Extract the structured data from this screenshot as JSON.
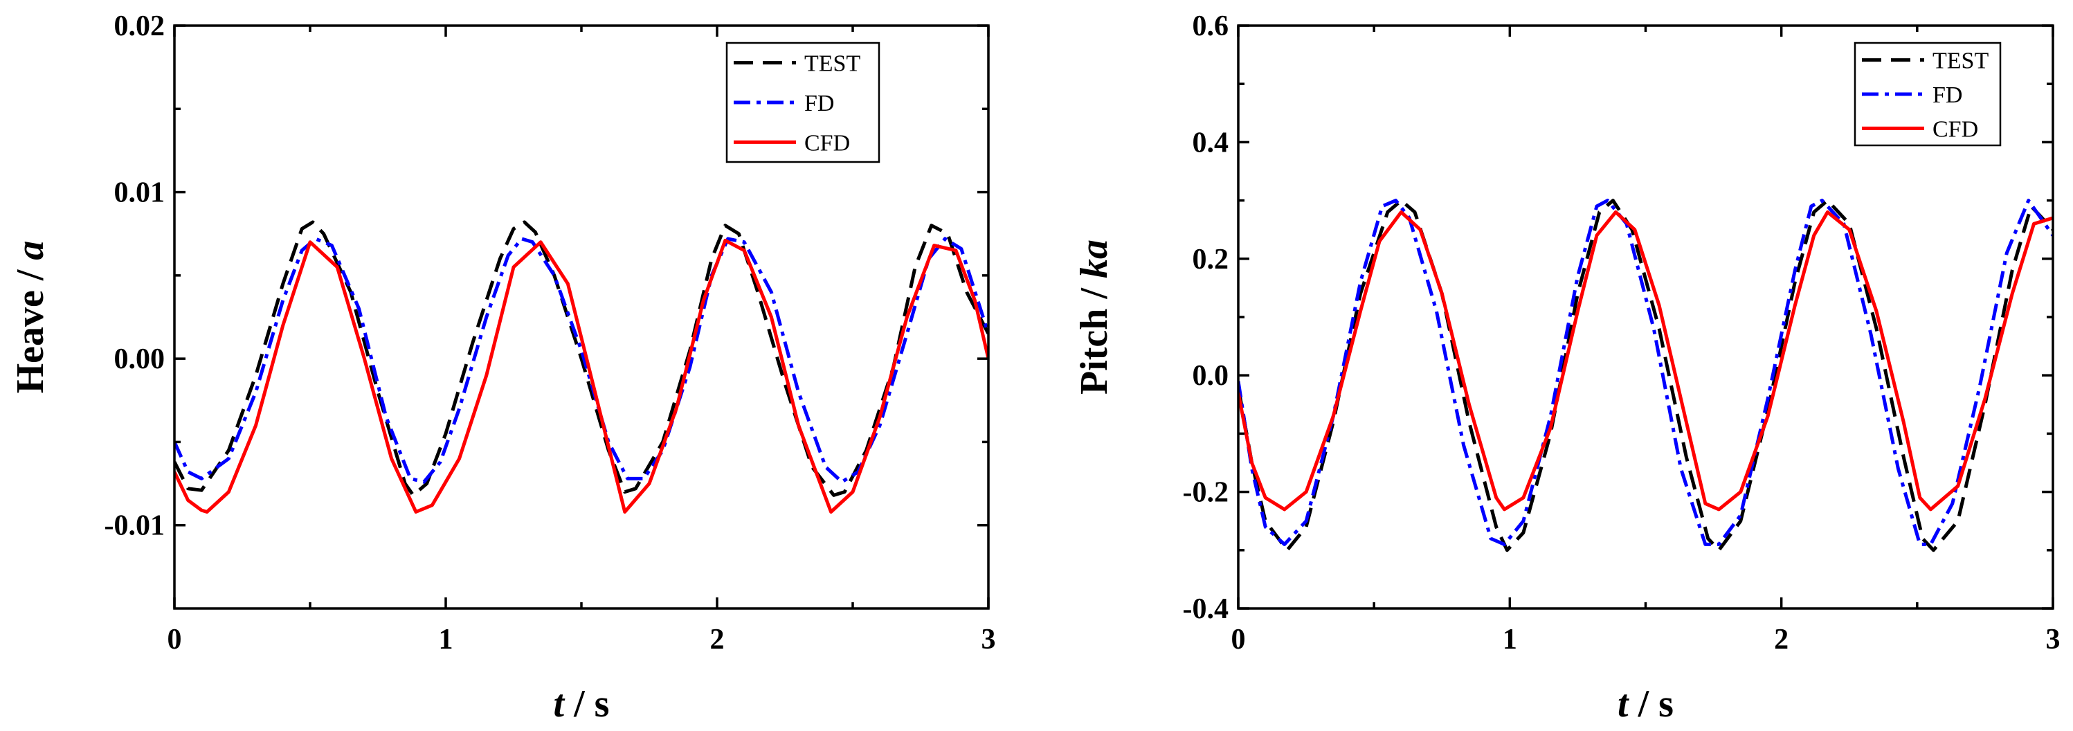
{
  "colors": {
    "TEST": "#000000",
    "FD": "#0000ff",
    "CFD": "#ff0000"
  },
  "chart_data": [
    {
      "type": "line",
      "id": "heave",
      "title": "",
      "xlabel": {
        "var": "t",
        "unit": " / s"
      },
      "ylabel": {
        "prefix": "Heave / ",
        "var": "a"
      },
      "xlim": [
        0,
        3
      ],
      "ylim": [
        -0.015,
        0.02
      ],
      "xticks": [
        0,
        1,
        2,
        3
      ],
      "xtick_labels": [
        "0",
        "1",
        "2",
        "3"
      ],
      "yticks": [
        -0.01,
        0.0,
        0.01,
        0.02
      ],
      "ytick_labels": [
        "-0.01",
        "0.00",
        "0.01",
        "0.02"
      ],
      "grid": false,
      "legend_position": "top-right",
      "series": [
        {
          "name": "TEST",
          "style": "dash",
          "x": [
            0,
            0.05,
            0.1,
            0.2,
            0.3,
            0.4,
            0.47,
            0.51,
            0.55,
            0.65,
            0.75,
            0.85,
            0.88,
            0.93,
            1.0,
            1.1,
            1.2,
            1.25,
            1.29,
            1.33,
            1.4,
            1.5,
            1.6,
            1.66,
            1.7,
            1.8,
            1.9,
            1.98,
            2.03,
            2.08,
            2.15,
            2.25,
            2.35,
            2.43,
            2.47,
            2.55,
            2.65,
            2.73,
            2.79,
            2.85,
            2.92,
            3.0
          ],
          "y": [
            -0.0062,
            -0.0078,
            -0.0079,
            -0.0055,
            -0.001,
            0.0045,
            0.0078,
            0.0082,
            0.0075,
            0.004,
            -0.002,
            -0.0075,
            -0.0082,
            -0.0075,
            -0.0045,
            0.001,
            0.006,
            0.0078,
            0.0082,
            0.0076,
            0.005,
            0.0,
            -0.0055,
            -0.008,
            -0.0078,
            -0.005,
            0.0005,
            0.006,
            0.008,
            0.0075,
            0.004,
            -0.0015,
            -0.0065,
            -0.0082,
            -0.008,
            -0.0055,
            -0.0005,
            0.0055,
            0.008,
            0.0075,
            0.004,
            0.0015
          ]
        },
        {
          "name": "FD",
          "style": "dashdot",
          "x": [
            0,
            0.05,
            0.1,
            0.2,
            0.3,
            0.4,
            0.47,
            0.52,
            0.58,
            0.68,
            0.78,
            0.87,
            0.92,
            0.98,
            1.05,
            1.15,
            1.23,
            1.28,
            1.32,
            1.4,
            1.5,
            1.6,
            1.67,
            1.73,
            1.8,
            1.9,
            1.98,
            2.04,
            2.1,
            2.2,
            2.3,
            2.4,
            2.46,
            2.52,
            2.6,
            2.7,
            2.78,
            2.84,
            2.9,
            3.0
          ],
          "y": [
            -0.005,
            -0.0068,
            -0.0072,
            -0.006,
            -0.002,
            0.0035,
            0.0065,
            0.0072,
            0.0068,
            0.003,
            -0.0035,
            -0.0072,
            -0.0074,
            -0.0062,
            -0.003,
            0.0025,
            0.0062,
            0.0072,
            0.007,
            0.005,
            0.0005,
            -0.005,
            -0.0072,
            -0.0072,
            -0.0055,
            -0.0005,
            0.005,
            0.0072,
            0.007,
            0.004,
            -0.002,
            -0.0065,
            -0.0074,
            -0.0068,
            -0.004,
            0.0015,
            0.006,
            0.0072,
            0.0066,
            0.0015
          ]
        },
        {
          "name": "CFD",
          "style": "solid",
          "x": [
            0,
            0.05,
            0.1,
            0.12,
            0.2,
            0.3,
            0.4,
            0.5,
            0.6,
            0.7,
            0.8,
            0.89,
            0.95,
            1.05,
            1.15,
            1.25,
            1.35,
            1.45,
            1.55,
            1.66,
            1.75,
            1.85,
            1.95,
            2.03,
            2.1,
            2.2,
            2.3,
            2.42,
            2.5,
            2.6,
            2.7,
            2.8,
            2.88,
            2.95,
            3.0
          ],
          "y": [
            -0.0068,
            -0.0085,
            -0.0091,
            -0.0092,
            -0.008,
            -0.004,
            0.002,
            0.007,
            0.0055,
            0.0,
            -0.006,
            -0.0092,
            -0.0088,
            -0.006,
            -0.001,
            0.0055,
            0.007,
            0.0045,
            -0.002,
            -0.0092,
            -0.0075,
            -0.003,
            0.0035,
            0.0071,
            0.0065,
            0.0025,
            -0.004,
            -0.0092,
            -0.008,
            -0.0035,
            0.0025,
            0.0068,
            0.0065,
            0.0035,
            0.0
          ]
        }
      ]
    },
    {
      "type": "line",
      "id": "pitch",
      "title": "",
      "xlabel": {
        "var": "t",
        "unit": " / s"
      },
      "ylabel": {
        "prefix": "Pitch / ",
        "var": "ka"
      },
      "xlim": [
        0,
        3
      ],
      "ylim": [
        -0.4,
        0.6
      ],
      "xticks": [
        0,
        1,
        2,
        3
      ],
      "xtick_labels": [
        "0",
        "1",
        "2",
        "3"
      ],
      "yticks": [
        -0.4,
        -0.2,
        0.0,
        0.2,
        0.4,
        0.6
      ],
      "ytick_labels": [
        "-0.4",
        "-0.2",
        "0.0",
        "0.2",
        "0.4",
        "0.6"
      ],
      "grid": false,
      "legend_position": "top-right",
      "series": [
        {
          "name": "TEST",
          "style": "dash",
          "x": [
            0,
            0.05,
            0.1,
            0.18,
            0.25,
            0.35,
            0.45,
            0.55,
            0.6,
            0.65,
            0.75,
            0.85,
            0.95,
            0.99,
            1.05,
            1.15,
            1.25,
            1.33,
            1.38,
            1.45,
            1.55,
            1.65,
            1.73,
            1.77,
            1.85,
            1.95,
            2.05,
            2.12,
            2.17,
            2.25,
            2.35,
            2.45,
            2.52,
            2.56,
            2.65,
            2.75,
            2.85,
            2.92,
            3.0
          ],
          "y": [
            -0.02,
            -0.15,
            -0.25,
            -0.3,
            -0.26,
            -0.08,
            0.14,
            0.28,
            0.3,
            0.28,
            0.14,
            -0.08,
            -0.26,
            -0.3,
            -0.27,
            -0.1,
            0.14,
            0.28,
            0.3,
            0.25,
            0.08,
            -0.14,
            -0.28,
            -0.3,
            -0.25,
            -0.06,
            0.16,
            0.28,
            0.3,
            0.26,
            0.08,
            -0.14,
            -0.28,
            -0.3,
            -0.25,
            -0.05,
            0.18,
            0.29,
            0.25
          ]
        },
        {
          "name": "FD",
          "style": "dashdot",
          "x": [
            0,
            0.05,
            0.1,
            0.17,
            0.25,
            0.35,
            0.45,
            0.53,
            0.58,
            0.63,
            0.73,
            0.83,
            0.93,
            0.98,
            1.05,
            1.15,
            1.25,
            1.32,
            1.36,
            1.43,
            1.53,
            1.63,
            1.72,
            1.77,
            1.85,
            1.95,
            2.05,
            2.11,
            2.15,
            2.23,
            2.33,
            2.43,
            2.51,
            2.55,
            2.63,
            2.73,
            2.83,
            2.91,
            3.0
          ],
          "y": [
            -0.01,
            -0.16,
            -0.26,
            -0.29,
            -0.25,
            -0.07,
            0.16,
            0.29,
            0.3,
            0.27,
            0.11,
            -0.12,
            -0.28,
            -0.29,
            -0.25,
            -0.07,
            0.17,
            0.29,
            0.3,
            0.26,
            0.08,
            -0.16,
            -0.29,
            -0.29,
            -0.24,
            -0.04,
            0.18,
            0.29,
            0.3,
            0.26,
            0.07,
            -0.16,
            -0.29,
            -0.29,
            -0.22,
            -0.02,
            0.21,
            0.3,
            0.24
          ]
        },
        {
          "name": "CFD",
          "style": "solid",
          "x": [
            0,
            0.05,
            0.1,
            0.17,
            0.25,
            0.35,
            0.45,
            0.52,
            0.6,
            0.67,
            0.75,
            0.85,
            0.95,
            0.98,
            1.05,
            1.15,
            1.25,
            1.32,
            1.39,
            1.46,
            1.55,
            1.65,
            1.72,
            1.77,
            1.85,
            1.95,
            2.05,
            2.12,
            2.17,
            2.25,
            2.35,
            2.45,
            2.51,
            2.55,
            2.65,
            2.75,
            2.85,
            2.93,
            3.0
          ],
          "y": [
            -0.03,
            -0.15,
            -0.21,
            -0.23,
            -0.2,
            -0.07,
            0.11,
            0.23,
            0.28,
            0.25,
            0.14,
            -0.05,
            -0.21,
            -0.23,
            -0.21,
            -0.09,
            0.11,
            0.24,
            0.28,
            0.25,
            0.12,
            -0.08,
            -0.22,
            -0.23,
            -0.2,
            -0.07,
            0.12,
            0.24,
            0.28,
            0.25,
            0.11,
            -0.08,
            -0.21,
            -0.23,
            -0.19,
            -0.04,
            0.14,
            0.26,
            0.27
          ]
        }
      ]
    }
  ]
}
